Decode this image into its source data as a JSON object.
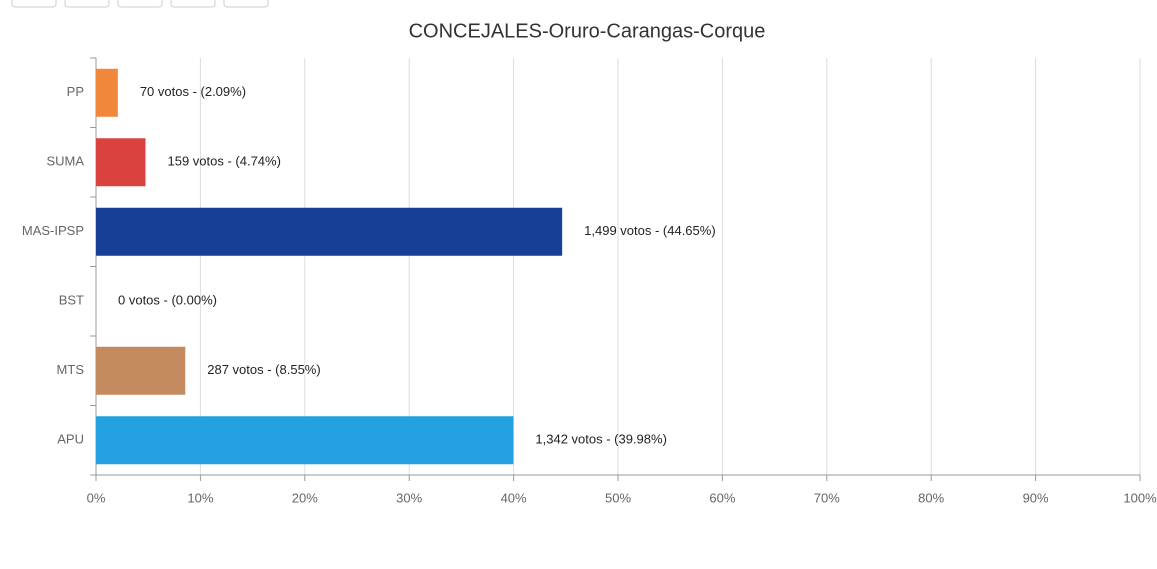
{
  "chart_data": {
    "type": "bar",
    "orientation": "horizontal",
    "title": "CONCEJALES-Oruro-Carangas-Corque",
    "categories": [
      "PP",
      "SUMA",
      "MAS-IPSP",
      "BST",
      "MTS",
      "APU"
    ],
    "values": [
      2.09,
      4.74,
      44.65,
      0,
      8.55,
      39.98
    ],
    "value_labels": [
      "70 votos - (2.09%)",
      "159 votos - (4.74%)",
      "1,499 votos - (44.65%)",
      "0 votos - (0.00%)",
      "287 votos - (8.55%)",
      "1,342 votos - (39.98%)"
    ],
    "colors": [
      "#f0873a",
      "#d9423f",
      "#173f93",
      "#888888",
      "#c38b5f",
      "#22a0e0"
    ],
    "xlim": [
      0,
      100
    ],
    "xticks": [
      {
        "value": 0,
        "label": "0%"
      },
      {
        "value": 10,
        "label": "10%"
      },
      {
        "value": 20,
        "label": "20%"
      },
      {
        "value": 30,
        "label": "30%"
      },
      {
        "value": 40,
        "label": "40%"
      },
      {
        "value": 50,
        "label": "50%"
      },
      {
        "value": 60,
        "label": "60%"
      },
      {
        "value": 70,
        "label": "70%"
      },
      {
        "value": 80,
        "label": "80%"
      },
      {
        "value": 90,
        "label": "90%"
      },
      {
        "value": 100,
        "label": "100%"
      }
    ],
    "grid": true
  }
}
